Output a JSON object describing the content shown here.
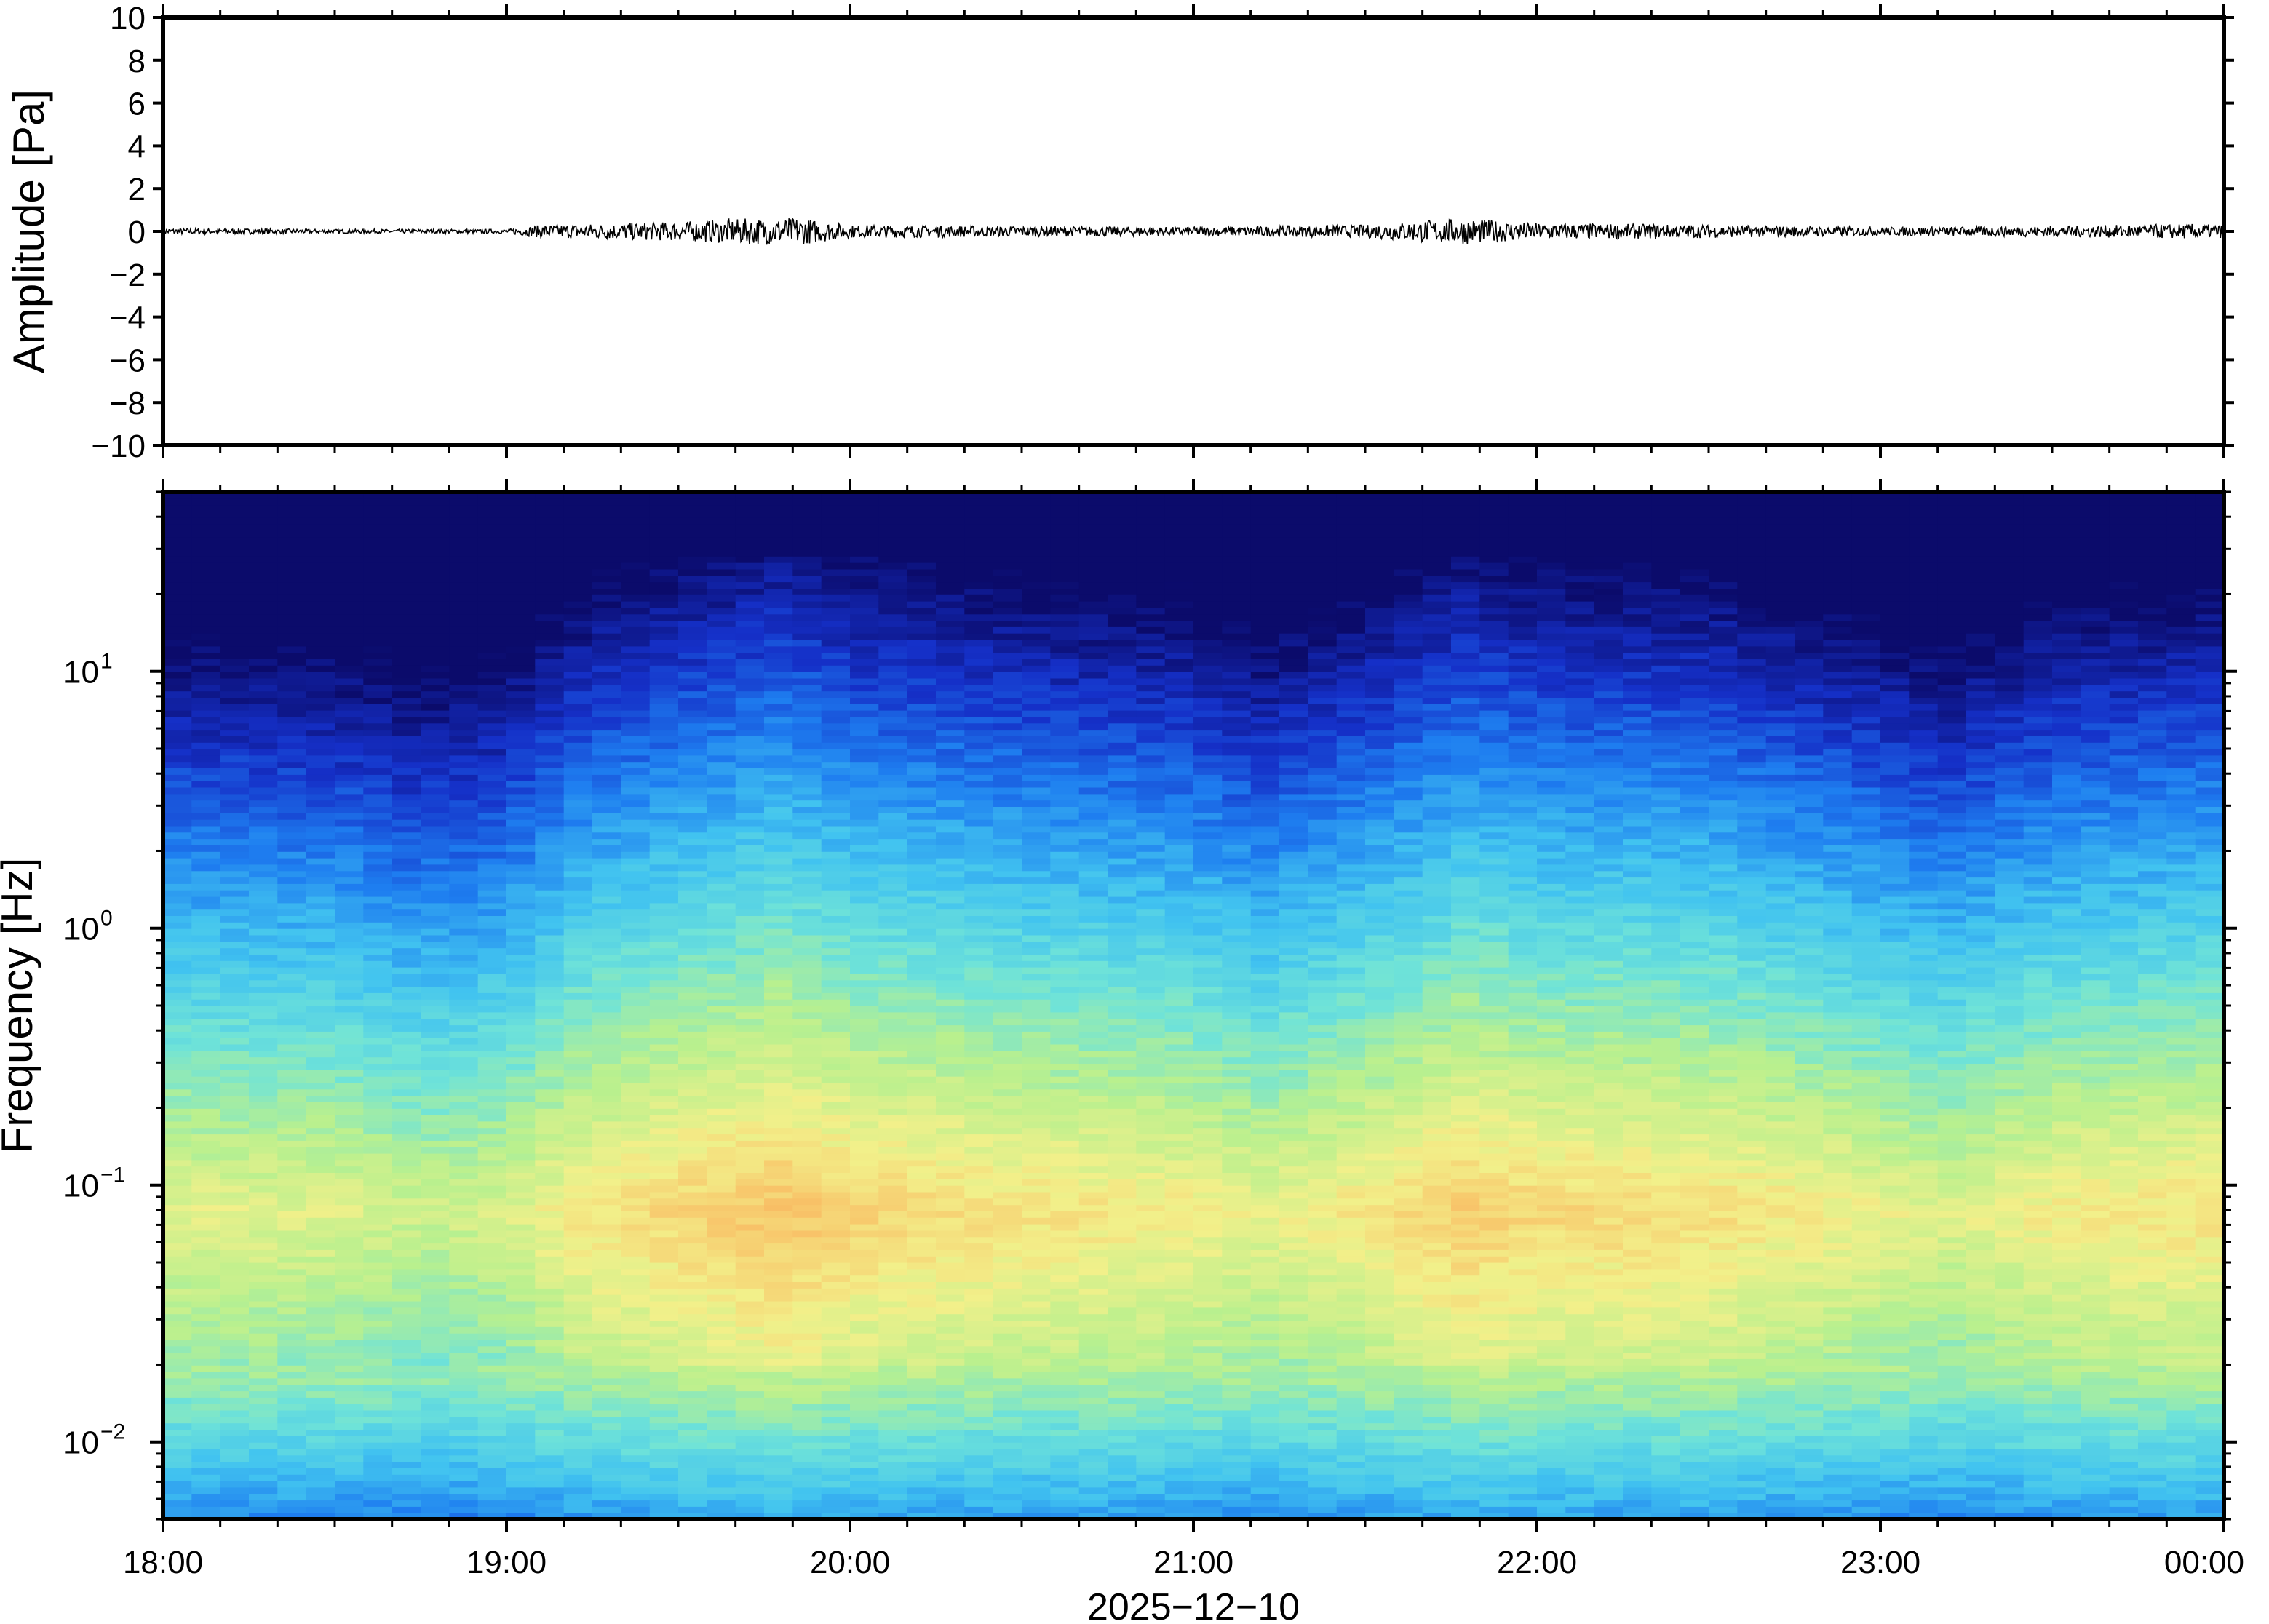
{
  "chart_data": [
    {
      "type": "line",
      "panel": "waveform",
      "ylabel": "Amplitude [Pa]",
      "ylim": [
        -10,
        10
      ],
      "y_ticks": [
        "10",
        "8",
        "6",
        "4",
        "2",
        "0",
        "−2",
        "−4",
        "−6",
        "−8",
        "−10"
      ],
      "y_tick_values": [
        10,
        8,
        6,
        4,
        2,
        0,
        -2,
        -4,
        -6,
        -8,
        -10
      ],
      "x_range_hours": [
        18,
        24
      ],
      "series": [
        {
          "color": "#000000",
          "envelope_hours": [
            18.0,
            18.5,
            19.0,
            19.1,
            19.5,
            19.7,
            19.85,
            20.0,
            20.5,
            21.0,
            21.5,
            21.7,
            21.8,
            22.0,
            22.5,
            23.0,
            23.5,
            23.9,
            24.0
          ],
          "envelope_amplitude": [
            0.15,
            0.1,
            0.1,
            0.3,
            0.45,
            0.6,
            0.65,
            0.3,
            0.25,
            0.2,
            0.3,
            0.55,
            0.6,
            0.4,
            0.3,
            0.2,
            0.25,
            0.35,
            0.3
          ]
        }
      ]
    },
    {
      "type": "heatmap",
      "panel": "spectrogram",
      "ylabel": "Frequency [Hz]",
      "xlabel": "2025−12−10",
      "y_scale": "log",
      "ylim": [
        0.005,
        50
      ],
      "y_ticks": [
        {
          "base": "10",
          "exp": "1",
          "value": 10
        },
        {
          "base": "10",
          "exp": "0",
          "value": 1
        },
        {
          "base": "10",
          "exp": "−1",
          "value": 0.1
        },
        {
          "base": "10",
          "exp": "−2",
          "value": 0.01
        }
      ],
      "x_ticks": [
        "18:00",
        "19:00",
        "20:00",
        "21:00",
        "22:00",
        "23:00",
        "00:00"
      ],
      "x_tick_hours": [
        18,
        19,
        20,
        21,
        22,
        23,
        24
      ],
      "colormap": [
        "#0b0b6b",
        "#1530c8",
        "#1e7ef0",
        "#41c3f0",
        "#6fe3d8",
        "#b9f08e",
        "#f2f08a",
        "#f8c56a",
        "#f5964a"
      ],
      "intensity_by_time": {
        "hours": [
          18.0,
          18.5,
          18.75,
          19.0,
          19.2,
          19.8,
          20.0,
          20.5,
          21.0,
          21.2,
          21.5,
          21.8,
          22.0,
          22.5,
          23.0,
          23.2,
          23.5,
          24.0
        ],
        "relative_level": [
          0.2,
          0.15,
          0.0,
          0.1,
          0.4,
          0.75,
          0.6,
          0.45,
          0.35,
          0.2,
          0.4,
          0.65,
          0.55,
          0.5,
          0.25,
          0.15,
          0.35,
          0.45
        ]
      }
    }
  ]
}
